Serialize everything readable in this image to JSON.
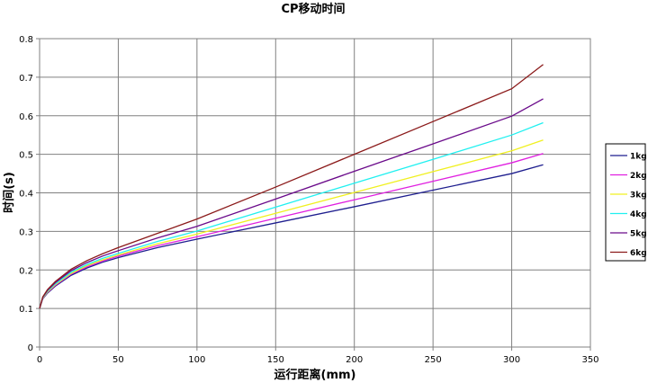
{
  "chart_data": {
    "type": "line",
    "title": "CP移动时间",
    "xlabel": "运行距离(mm)",
    "ylabel": "时间(s)",
    "xlim": [
      0,
      350
    ],
    "ylim": [
      0,
      0.8
    ],
    "xticks": [
      0,
      50,
      100,
      150,
      200,
      250,
      300,
      350
    ],
    "yticks": [
      0,
      0.1,
      0.2,
      0.3,
      0.4,
      0.5,
      0.6,
      0.7,
      0.8
    ],
    "grid": true,
    "legend_position": "right",
    "series": [
      {
        "name": "1kg",
        "color": "#1f1f8f",
        "x": [
          0,
          2,
          5,
          10,
          20,
          30,
          40,
          50,
          75,
          100,
          150,
          200,
          250,
          300,
          320
        ],
        "y": [
          0.1,
          0.125,
          0.14,
          0.158,
          0.186,
          0.205,
          0.22,
          0.232,
          0.258,
          0.28,
          0.322,
          0.364,
          0.407,
          0.45,
          0.473
        ]
      },
      {
        "name": "2kg",
        "color": "#e020e0",
        "x": [
          0,
          2,
          5,
          10,
          20,
          30,
          40,
          50,
          75,
          100,
          150,
          200,
          250,
          300,
          320
        ],
        "y": [
          0.1,
          0.126,
          0.142,
          0.16,
          0.189,
          0.208,
          0.223,
          0.236,
          0.263,
          0.286,
          0.334,
          0.382,
          0.43,
          0.478,
          0.502
        ]
      },
      {
        "name": "3kg",
        "color": "#f0f020",
        "x": [
          0,
          2,
          5,
          10,
          20,
          30,
          40,
          50,
          75,
          100,
          150,
          200,
          250,
          300,
          320
        ],
        "y": [
          0.1,
          0.127,
          0.143,
          0.162,
          0.191,
          0.211,
          0.226,
          0.239,
          0.268,
          0.293,
          0.347,
          0.401,
          0.455,
          0.509,
          0.537
        ]
      },
      {
        "name": "4kg",
        "color": "#20f0f0",
        "x": [
          0,
          2,
          5,
          10,
          20,
          30,
          40,
          50,
          75,
          100,
          150,
          200,
          250,
          300,
          320
        ],
        "y": [
          0.1,
          0.128,
          0.145,
          0.164,
          0.194,
          0.214,
          0.23,
          0.243,
          0.274,
          0.301,
          0.363,
          0.425,
          0.487,
          0.55,
          0.582
        ]
      },
      {
        "name": "5kg",
        "color": "#6a0a8a",
        "x": [
          0,
          2,
          5,
          10,
          20,
          30,
          40,
          50,
          75,
          100,
          150,
          200,
          250,
          300,
          320
        ],
        "y": [
          0.1,
          0.129,
          0.147,
          0.167,
          0.198,
          0.219,
          0.236,
          0.25,
          0.283,
          0.313,
          0.384,
          0.456,
          0.527,
          0.599,
          0.644
        ]
      },
      {
        "name": "6kg",
        "color": "#8b1a1a",
        "x": [
          0,
          2,
          5,
          10,
          20,
          30,
          40,
          50,
          75,
          100,
          150,
          200,
          250,
          300,
          320
        ],
        "y": [
          0.1,
          0.13,
          0.149,
          0.17,
          0.202,
          0.224,
          0.242,
          0.258,
          0.295,
          0.332,
          0.415,
          0.5,
          0.585,
          0.67,
          0.733
        ]
      }
    ]
  }
}
